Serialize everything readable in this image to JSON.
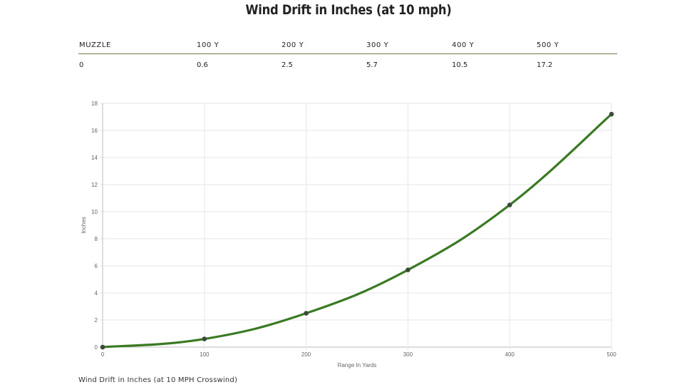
{
  "page": {
    "title": "Wind Drift in Inches (at 10 mph)",
    "caption": "Wind Drift in Inches (at 10 MPH Crosswind)"
  },
  "table": {
    "headers": [
      "MUZZLE",
      "100 Y",
      "200 Y",
      "300 Y",
      "400 Y",
      "500 Y"
    ],
    "values": [
      "0",
      "0.6",
      "2.5",
      "5.7",
      "10.5",
      "17.2"
    ]
  },
  "colors": {
    "line": "#3a7a23",
    "point": "#3d4a3a",
    "grid": "#e6e6e6",
    "axis": "#bdbdbd",
    "rule": "#6b7d4b"
  },
  "chart_data": {
    "type": "line",
    "title": "Wind Drift in Inches (at 10 mph)",
    "xlabel": "Range In Yards",
    "ylabel": "Inches",
    "x": [
      0,
      100,
      200,
      300,
      400,
      500
    ],
    "series": [
      {
        "name": "Wind Drift",
        "values": [
          0,
          0.6,
          2.5,
          5.7,
          10.5,
          17.2
        ]
      }
    ],
    "xlim": [
      0,
      500
    ],
    "ylim": [
      0,
      18
    ],
    "xticks": [
      0,
      100,
      200,
      300,
      400,
      500
    ],
    "yticks": [
      0,
      2,
      4,
      6,
      8,
      10,
      12,
      14,
      16,
      18
    ],
    "grid": true,
    "legend": "none"
  }
}
